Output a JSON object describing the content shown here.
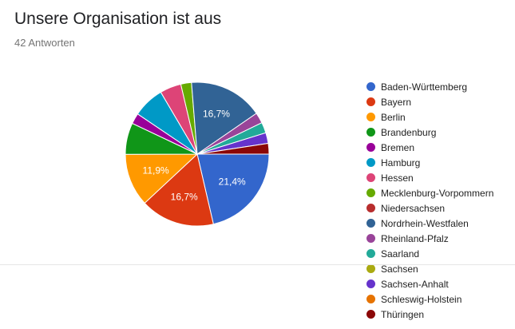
{
  "header": {
    "title": "Unsere Organisation ist aus",
    "responses": "42 Antworten"
  },
  "chart_data": {
    "type": "pie",
    "title": "Unsere Organisation ist aus",
    "legend_position": "right",
    "slices": [
      {
        "label": "Baden-Württemberg",
        "value": 21.4,
        "color": "#3366cc",
        "display": "21,4%"
      },
      {
        "label": "Bayern",
        "value": 16.7,
        "color": "#dc3912",
        "display": "16,7%"
      },
      {
        "label": "Berlin",
        "value": 11.9,
        "color": "#ff9900",
        "display": "11,9%"
      },
      {
        "label": "Brandenburg",
        "value": 7.1,
        "color": "#109618",
        "display": ""
      },
      {
        "label": "Bremen",
        "value": 2.4,
        "color": "#990099",
        "display": ""
      },
      {
        "label": "Hamburg",
        "value": 7.1,
        "color": "#0099c6",
        "display": ""
      },
      {
        "label": "Hessen",
        "value": 4.8,
        "color": "#dd4477",
        "display": ""
      },
      {
        "label": "Mecklenburg-Vorpommern",
        "value": 2.4,
        "color": "#66aa00",
        "display": ""
      },
      {
        "label": "Niedersachsen",
        "value": 0,
        "color": "#b82e2e",
        "display": ""
      },
      {
        "label": "Nordrhein-Westfalen",
        "value": 16.7,
        "color": "#316395",
        "display": "16,7%"
      },
      {
        "label": "Rheinland-Pfalz",
        "value": 2.4,
        "color": "#994499",
        "display": ""
      },
      {
        "label": "Saarland",
        "value": 2.4,
        "color": "#22aa99",
        "display": ""
      },
      {
        "label": "Sachsen",
        "value": 0,
        "color": "#aaaa11",
        "display": ""
      },
      {
        "label": "Sachsen-Anhalt",
        "value": 2.4,
        "color": "#6633cc",
        "display": ""
      },
      {
        "label": "Schleswig-Holstein",
        "value": 0,
        "color": "#e67300",
        "display": ""
      },
      {
        "label": "Thüringen",
        "value": 2.4,
        "color": "#8b0707",
        "display": ""
      }
    ]
  }
}
